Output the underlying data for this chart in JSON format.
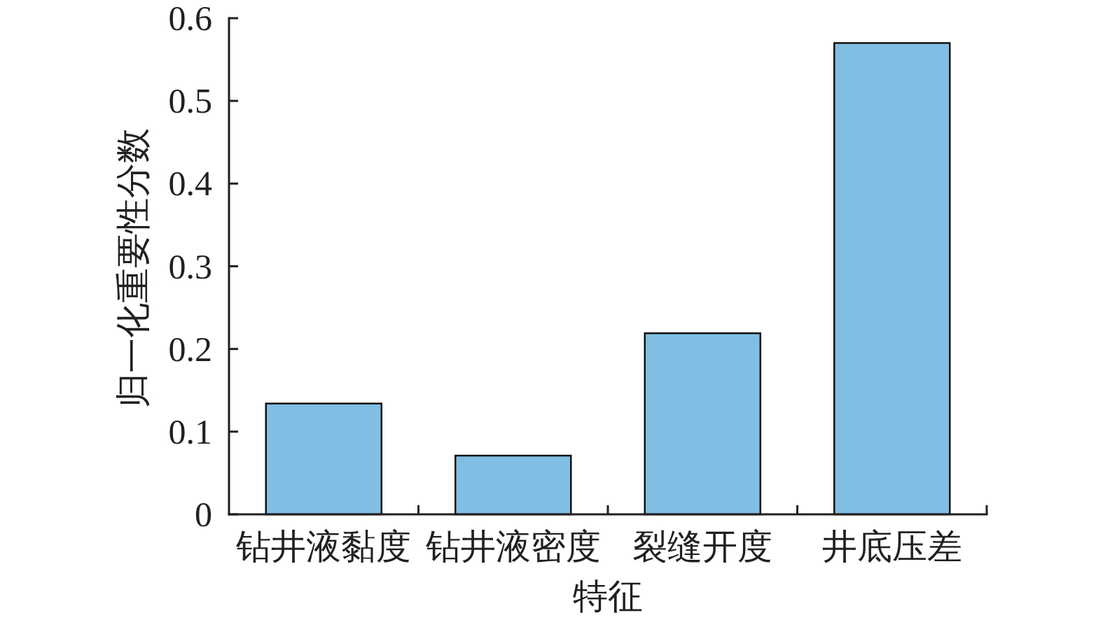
{
  "chart_data": {
    "type": "bar",
    "xlabel": "特征",
    "ylabel": "归一化重要性分数",
    "categories": [
      "钻井液黏度",
      "钻井液密度",
      "裂缝开度",
      "井底压差"
    ],
    "values": [
      0.134,
      0.071,
      0.219,
      0.57
    ],
    "color": "#80bfe3",
    "ylim": [
      0,
      0.6
    ],
    "yticks": [
      0,
      0.1,
      0.2,
      0.3,
      0.4,
      0.5,
      0.6
    ]
  }
}
